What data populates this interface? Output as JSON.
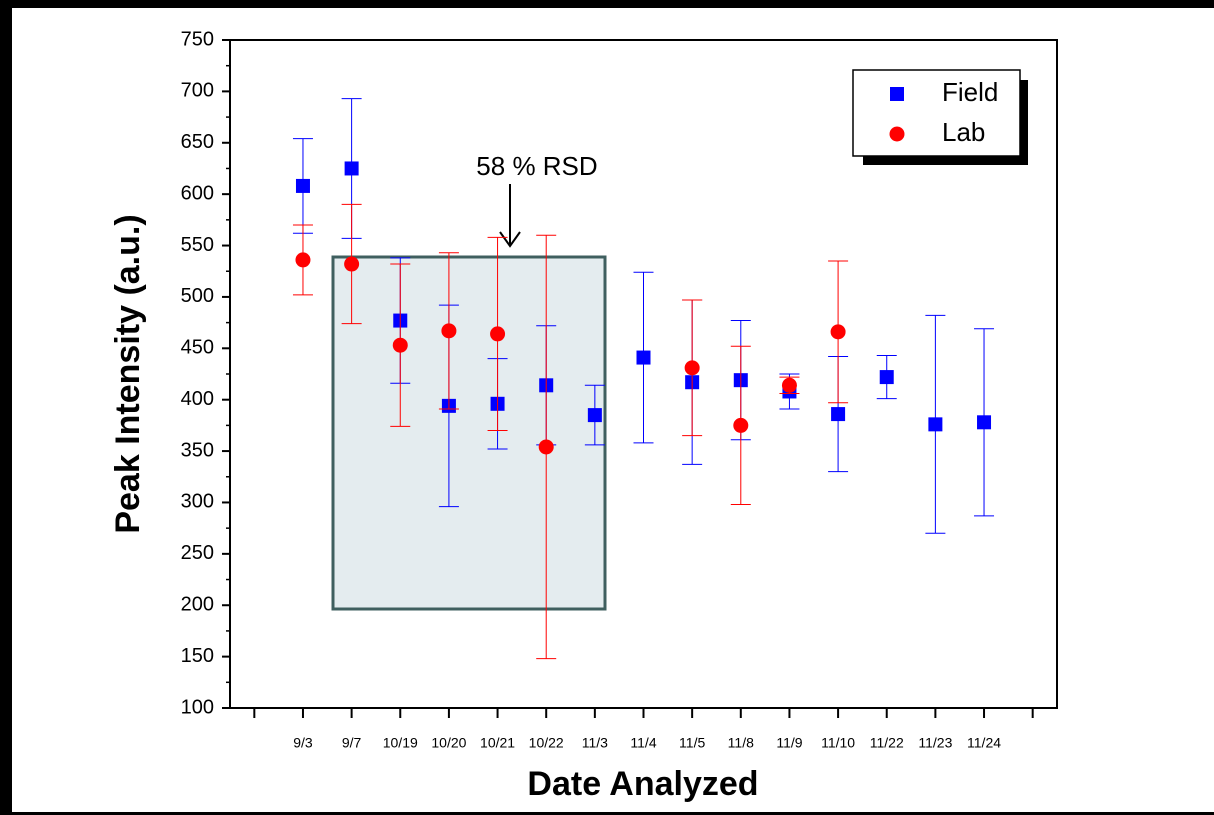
{
  "chart_data": {
    "type": "scatter",
    "xlabel": "Date Analyzed",
    "ylabel": "Peak Intensity (a.u.)",
    "annotation": "58 % RSD",
    "categories": [
      null,
      "9/3",
      "9/7",
      "10/19",
      "10/20",
      "10/21",
      "10/22",
      "11/3",
      "11/4",
      "11/5",
      "11/8",
      "11/9",
      "11/10",
      "11/22",
      "11/23",
      "11/24",
      null
    ],
    "series": [
      {
        "name": "Field",
        "color": "#0000ff",
        "marker": "square",
        "values": [
          null,
          608,
          625,
          477,
          394,
          396,
          414,
          385,
          441,
          417,
          419,
          408,
          386,
          422,
          376,
          378,
          null
        ],
        "errors": [
          null,
          46,
          68,
          61,
          98,
          44,
          58,
          29,
          83,
          80,
          58,
          17,
          56,
          21,
          106,
          91,
          null
        ]
      },
      {
        "name": "Lab",
        "color": "#ff0000",
        "marker": "circle",
        "values": [
          null,
          536,
          532,
          453,
          467,
          464,
          354,
          null,
          null,
          431,
          375,
          414,
          466,
          null,
          null,
          null,
          null
        ],
        "errors": [
          null,
          34,
          58,
          79,
          76,
          94,
          206,
          null,
          null,
          66,
          77,
          8,
          69,
          null,
          null,
          null,
          null
        ]
      }
    ],
    "ylim": [
      100,
      750
    ],
    "yticks": [
      100,
      150,
      200,
      250,
      300,
      350,
      400,
      450,
      500,
      550,
      600,
      650,
      700,
      750
    ],
    "legend": "upper right"
  }
}
